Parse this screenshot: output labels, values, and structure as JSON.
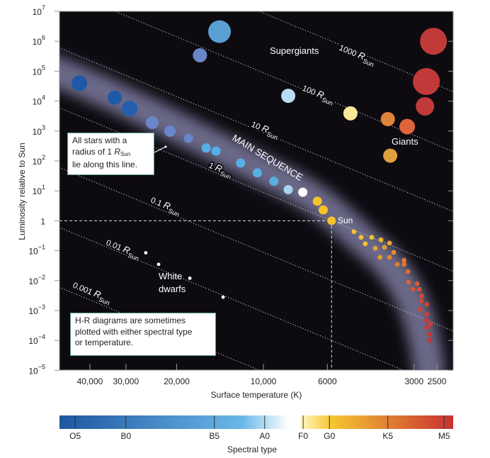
{
  "chart_data": {
    "type": "scatter",
    "xlabel": "Surface temperature (K)",
    "ylabel": "Luminosity relative to Sun",
    "x_scale": "log-reversed",
    "y_scale": "log",
    "xlim": [
      51000,
      2200
    ],
    "ylim": [
      1e-05,
      10000000
    ],
    "grid": false,
    "x_ticks": [
      {
        "value": 40000,
        "label": "40,000"
      },
      {
        "value": 30000,
        "label": "30,000"
      },
      {
        "value": 20000,
        "label": "20,000"
      },
      {
        "value": 10000,
        "label": "10,000"
      },
      {
        "value": 6000,
        "label": "6000"
      },
      {
        "value": 3000,
        "label": "3000"
      },
      {
        "value": 2500,
        "label": "2500"
      }
    ],
    "y_ticks": [
      {
        "value": 10000000,
        "base": "10",
        "exp": "7"
      },
      {
        "value": 1000000,
        "base": "10",
        "exp": "6"
      },
      {
        "value": 100000,
        "base": "10",
        "exp": "5"
      },
      {
        "value": 10000,
        "base": "10",
        "exp": "4"
      },
      {
        "value": 1000,
        "base": "10",
        "exp": "3"
      },
      {
        "value": 100,
        "base": "10",
        "exp": "2"
      },
      {
        "value": 10,
        "base": "10",
        "exp": "1"
      },
      {
        "value": 1,
        "base": "1",
        "exp": ""
      },
      {
        "value": 0.1,
        "base": "10",
        "exp": "−1"
      },
      {
        "value": 0.01,
        "base": "10",
        "exp": "−2"
      },
      {
        "value": 0.001,
        "base": "10",
        "exp": "−3"
      },
      {
        "value": 0.0001,
        "base": "10",
        "exp": "−4"
      },
      {
        "value": 1e-05,
        "base": "10",
        "exp": "−5"
      }
    ],
    "radius_lines": [
      {
        "radius": 1000,
        "label": "1000 ",
        "symbol": "R",
        "sub": "Sun"
      },
      {
        "radius": 100,
        "label": "100 ",
        "symbol": "R",
        "sub": "Sun"
      },
      {
        "radius": 10,
        "label": "10 ",
        "symbol": "R",
        "sub": "Sun"
      },
      {
        "radius": 1,
        "label": "1 ",
        "symbol": "R",
        "sub": "Sun"
      },
      {
        "radius": 0.1,
        "label": "0.1 ",
        "symbol": "R",
        "sub": "Sun"
      },
      {
        "radius": 0.01,
        "label": "0.01 ",
        "symbol": "R",
        "sub": "Sun"
      },
      {
        "radius": 0.001,
        "label": "0.001 ",
        "symbol": "R",
        "sub": "Sun"
      }
    ],
    "sun": {
      "T": 5800,
      "L": 1,
      "label": "Sun",
      "color": "#f4c42a"
    },
    "series": [
      {
        "name": "MAIN SEQUENCE",
        "points": [
          {
            "T": 43500,
            "L": 40000,
            "size": "l",
            "color": "#1f58a6"
          },
          {
            "T": 32800,
            "L": 13000,
            "size": "m",
            "color": "#1f5aa8"
          },
          {
            "T": 29100,
            "L": 5700,
            "size": "l",
            "color": "#2260ae"
          },
          {
            "T": 24300,
            "L": 1900,
            "size": "s+",
            "color": "#6a86c8"
          },
          {
            "T": 21100,
            "L": 990,
            "size": "s",
            "color": "#6a86c8"
          },
          {
            "T": 18200,
            "L": 570,
            "size": "xs",
            "color": "#6a86c8"
          },
          {
            "T": 15800,
            "L": 270,
            "size": "xs",
            "color": "#56aee4"
          },
          {
            "T": 14600,
            "L": 215,
            "size": "xs",
            "color": "#56aee4"
          },
          {
            "T": 12000,
            "L": 85,
            "size": "xs",
            "color": "#56aee4"
          },
          {
            "T": 10500,
            "L": 40,
            "size": "xs",
            "color": "#56aee4"
          },
          {
            "T": 9200,
            "L": 21,
            "size": "xs",
            "color": "#5aaee0"
          },
          {
            "T": 8200,
            "L": 11,
            "size": "xs",
            "color": "#a8d4f0"
          },
          {
            "T": 7300,
            "L": 9,
            "size": "xs",
            "color": "#ffffff"
          },
          {
            "T": 6500,
            "L": 4.5,
            "size": "xs",
            "color": "#f4c42a"
          },
          {
            "T": 6200,
            "L": 2.3,
            "size": "xs",
            "color": "#f4c42a"
          },
          {
            "T": 4850,
            "L": 0.43,
            "size": "dot",
            "color": "#f4c42a"
          },
          {
            "T": 4580,
            "L": 0.28,
            "size": "dot",
            "color": "#f4c42a"
          },
          {
            "T": 4210,
            "L": 0.28,
            "size": "dot",
            "color": "#f4c42a"
          },
          {
            "T": 3910,
            "L": 0.23,
            "size": "dot",
            "color": "#f0b530"
          },
          {
            "T": 3650,
            "L": 0.18,
            "size": "dot",
            "color": "#eca532"
          },
          {
            "T": 4430,
            "L": 0.17,
            "size": "dot",
            "color": "#f4c42a"
          },
          {
            "T": 4090,
            "L": 0.12,
            "size": "dot",
            "color": "#eaa632"
          },
          {
            "T": 3800,
            "L": 0.13,
            "size": "dot",
            "color": "#e89a34"
          },
          {
            "T": 3530,
            "L": 0.088,
            "size": "dot",
            "color": "#e48c36"
          },
          {
            "T": 3940,
            "L": 0.06,
            "size": "dot",
            "color": "#e49636"
          },
          {
            "T": 3650,
            "L": 0.06,
            "size": "dot",
            "color": "#e48836"
          },
          {
            "T": 3430,
            "L": 0.035,
            "size": "dot",
            "color": "#e27a36"
          },
          {
            "T": 3250,
            "L": 0.048,
            "size": "dot",
            "color": "#e27a36"
          },
          {
            "T": 3250,
            "L": 0.035,
            "size": "dot",
            "color": "#e07236"
          },
          {
            "T": 3150,
            "L": 0.02,
            "size": "dot",
            "color": "#de6a36"
          },
          {
            "T": 3140,
            "L": 0.0089,
            "size": "dot",
            "color": "#dc6236"
          },
          {
            "T": 2930,
            "L": 0.0079,
            "size": "dot",
            "color": "#da5a36"
          },
          {
            "T": 3030,
            "L": 0.0051,
            "size": "dot",
            "color": "#d85636"
          },
          {
            "T": 2880,
            "L": 0.0051,
            "size": "dot",
            "color": "#d65036"
          },
          {
            "T": 2830,
            "L": 0.0031,
            "size": "dot",
            "color": "#d44a36"
          },
          {
            "T": 2830,
            "L": 0.0021,
            "size": "dot",
            "color": "#d24436"
          },
          {
            "T": 2710,
            "L": 0.0016,
            "size": "dot",
            "color": "#d04036"
          },
          {
            "T": 2860,
            "L": 0.0011,
            "size": "dot",
            "color": "#d04036"
          },
          {
            "T": 2710,
            "L": 0.00076,
            "size": "dot",
            "color": "#ce3c36"
          },
          {
            "T": 2720,
            "L": 0.00047,
            "size": "dot",
            "color": "#cc3a36"
          },
          {
            "T": 2630,
            "L": 0.00035,
            "size": "dot",
            "color": "#cc3a36"
          },
          {
            "T": 2710,
            "L": 0.00027,
            "size": "dot",
            "color": "#ca3836"
          },
          {
            "T": 2660,
            "L": 0.00016,
            "size": "dot",
            "color": "#ca3636"
          },
          {
            "T": 2650,
            "L": 0.0001,
            "size": "dot",
            "color": "#c83436"
          }
        ]
      },
      {
        "name": "Supergiants",
        "points": [
          {
            "T": 14200,
            "L": 2100000,
            "size": "xl",
            "color": "#5a9fd4"
          },
          {
            "T": 16600,
            "L": 340000,
            "size": "m",
            "color": "#6a86c8"
          },
          {
            "T": 8200,
            "L": 15000,
            "size": "m",
            "color": "#b8dcf4"
          },
          {
            "T": 2570,
            "L": 1000000,
            "size": "xxl",
            "color": "#c03a3a"
          },
          {
            "T": 2720,
            "L": 45000,
            "size": "xxl",
            "color": "#c03a3a"
          },
          {
            "T": 2750,
            "L": 6700,
            "size": "l+",
            "color": "#c03a3a"
          }
        ]
      },
      {
        "name": "Giants",
        "points": [
          {
            "T": 4990,
            "L": 3900,
            "size": "m",
            "color": "#fbe79a"
          },
          {
            "T": 3700,
            "L": 2500,
            "size": "m",
            "color": "#e0843a"
          },
          {
            "T": 3170,
            "L": 1400,
            "size": "m+",
            "color": "#e0643a"
          },
          {
            "T": 3630,
            "L": 150,
            "size": "m",
            "color": "#e0a040"
          }
        ]
      },
      {
        "name": "White dwarfs",
        "name_lines": [
          "White",
          "dwarfs"
        ],
        "points": [
          {
            "T": 25600,
            "L": 0.085,
            "size": "wd",
            "color": "#ffffff"
          },
          {
            "T": 23100,
            "L": 0.035,
            "size": "wd",
            "color": "#ffffff"
          },
          {
            "T": 18000,
            "L": 0.012,
            "size": "wd",
            "color": "#ffffff"
          },
          {
            "T": 13800,
            "L": 0.0028,
            "size": "wd",
            "color": "#ffffff"
          }
        ]
      }
    ],
    "spectral_bar": {
      "title": "Spectral type",
      "ticks": [
        {
          "label": "O5",
          "T": 45000
        },
        {
          "label": "B0",
          "T": 30000
        },
        {
          "label": "B5",
          "T": 14800
        },
        {
          "label": "A0",
          "T": 9900
        },
        {
          "label": "F0",
          "T": 7280
        },
        {
          "label": "G0",
          "T": 5900
        },
        {
          "label": "K5",
          "T": 3700
        },
        {
          "label": "M5",
          "T": 2360
        }
      ],
      "colors": {
        "O": "#1f56a0",
        "A": "#6ab8e8",
        "F": "#fff8c8",
        "G": "#f5c830",
        "K": "#e08034",
        "M": "#c83030"
      }
    },
    "colors": {
      "plot_background": "#0d0b10",
      "main_sequence_glow": "#8a88b0",
      "callout_border": "#5f9e95"
    }
  },
  "callouts": {
    "radius": {
      "line1": "All stars with a",
      "line2": "radius of 1 ",
      "symbol": "R",
      "sub": "Sun",
      "line3": "lie along this line."
    },
    "note": {
      "line1": "H-R diagrams are sometimes",
      "line2": "plotted with either spectral type",
      "line3": "or temperature."
    }
  }
}
